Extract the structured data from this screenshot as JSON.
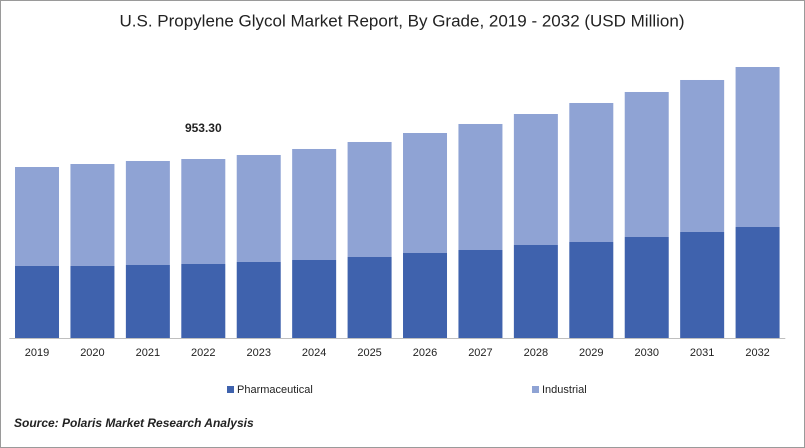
{
  "chart_data": {
    "type": "stacked-bar",
    "title": "U.S. Propylene Glycol Market Report, By Grade, 2019 - 2032 (USD Million)",
    "categories": [
      "2019",
      "2020",
      "2021",
      "2022",
      "2023",
      "2024",
      "2025",
      "2026",
      "2027",
      "2028",
      "2029",
      "2030",
      "2031",
      "2032"
    ],
    "series": [
      {
        "name": "Pharmaceutical",
        "color": "#3f62ad",
        "values": [
          383.5,
          383.5,
          388.8,
          394.1,
          404.8,
          415.4,
          431.4,
          452.7,
          468.7,
          495.3,
          511.3,
          537.9,
          564.6,
          591.2
        ]
      },
      {
        "name": "Industrial",
        "color": "#8fa3d4",
        "values": [
          527.2,
          543.2,
          553.9,
          559.2,
          569.9,
          591.2,
          612.5,
          639.1,
          671.1,
          697.7,
          740.3,
          772.3,
          809.5,
          852.1
        ]
      }
    ],
    "annotations": [
      {
        "text": "953.30",
        "value": 953.3
      }
    ],
    "source": "Source: Polaris  Market Research Analysis"
  }
}
